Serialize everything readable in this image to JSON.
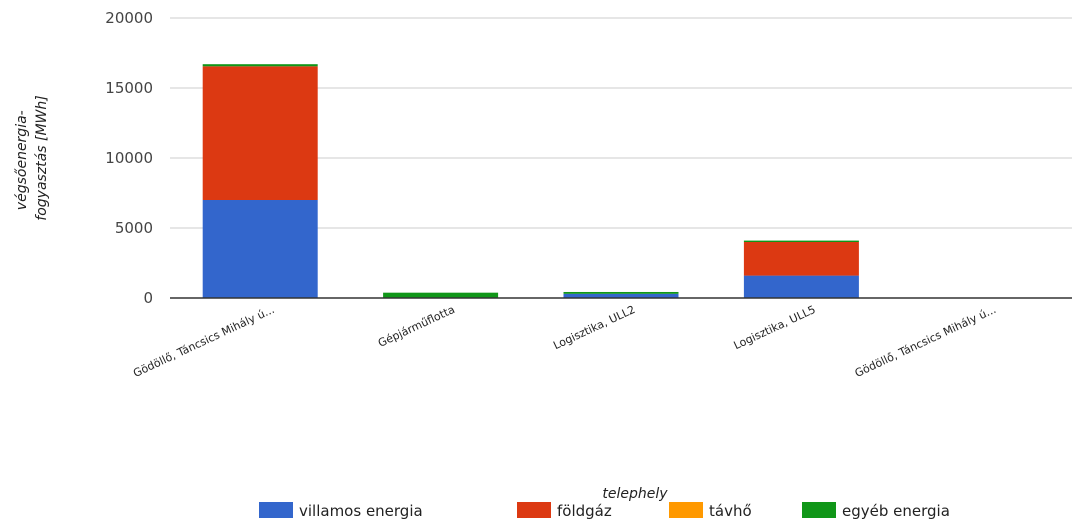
{
  "chart_data": {
    "type": "bar",
    "stacked": true,
    "categories": [
      "Gödöllő, Táncsics Mihály ú...",
      "Gépjárműflotta",
      "Logisztika, ULL2",
      "Logisztika, ULL5",
      "Gödöllő, Táncsics Mihály ú..."
    ],
    "series": [
      {
        "name": "villamos energia",
        "color": "#3366cc",
        "values": [
          7000,
          0,
          300,
          1600,
          0
        ]
      },
      {
        "name": "földgáz",
        "color": "#dc3912",
        "values": [
          9550,
          0,
          0,
          2400,
          0
        ]
      },
      {
        "name": "távhő",
        "color": "#ff9900",
        "values": [
          0,
          0,
          0,
          0,
          0
        ]
      },
      {
        "name": "egyéb energia",
        "color": "#109618",
        "values": [
          150,
          380,
          130,
          100,
          0
        ]
      }
    ],
    "xlabel": "telephely",
    "ylabel_lines": [
      "végsőenergia-",
      "fogyasztás [MWh]"
    ],
    "ylim": [
      0,
      20000
    ],
    "yticks": [
      0,
      5000,
      10000,
      15000,
      20000
    ],
    "grid": true,
    "legend_position": "bottom"
  }
}
